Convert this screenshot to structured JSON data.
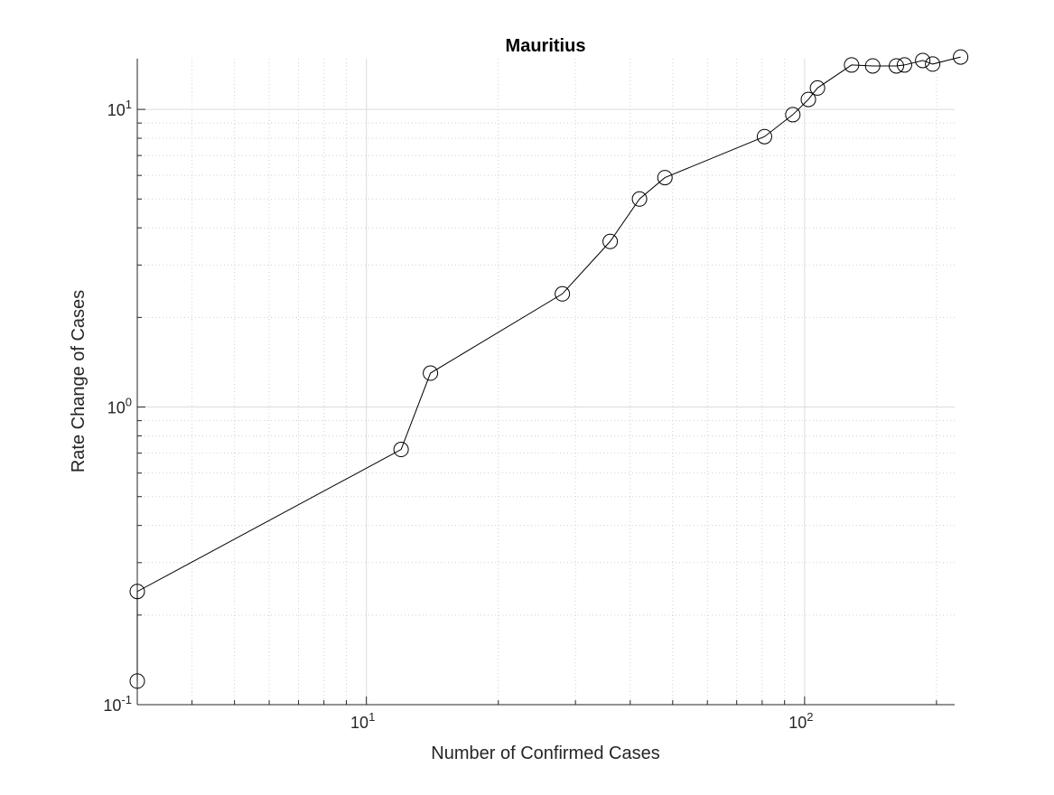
{
  "chart_data": {
    "type": "line",
    "title": "Mauritius",
    "xlabel": "Number of Confirmed Cases",
    "ylabel": "Rate Change of Cases",
    "x_scale": "log",
    "y_scale": "log",
    "xlim": [
      3,
      220
    ],
    "ylim": [
      0.1,
      14.8
    ],
    "grid": true,
    "minor_grid": true,
    "x_ticks": [
      {
        "value": 10,
        "base": "10",
        "exp": "1"
      },
      {
        "value": 100,
        "base": "10",
        "exp": "2"
      }
    ],
    "y_ticks": [
      {
        "value": 0.1,
        "base": "10",
        "exp": "-1"
      },
      {
        "value": 1,
        "base": "10",
        "exp": "0"
      },
      {
        "value": 10,
        "base": "10",
        "exp": "1"
      }
    ],
    "marker": "open-circle",
    "line_color": "#000000",
    "series": [
      {
        "x": [
          3,
          3,
          12,
          14,
          28,
          36,
          42,
          48,
          81,
          94,
          102,
          107,
          128,
          143,
          162,
          169,
          186,
          196,
          227
        ],
        "y": [
          0.12,
          0.24,
          0.72,
          1.3,
          2.4,
          3.6,
          5.0,
          5.9,
          8.1,
          9.6,
          10.8,
          11.8,
          14.1,
          14.0,
          14.0,
          14.1,
          14.6,
          14.2,
          15.0
        ]
      }
    ]
  }
}
